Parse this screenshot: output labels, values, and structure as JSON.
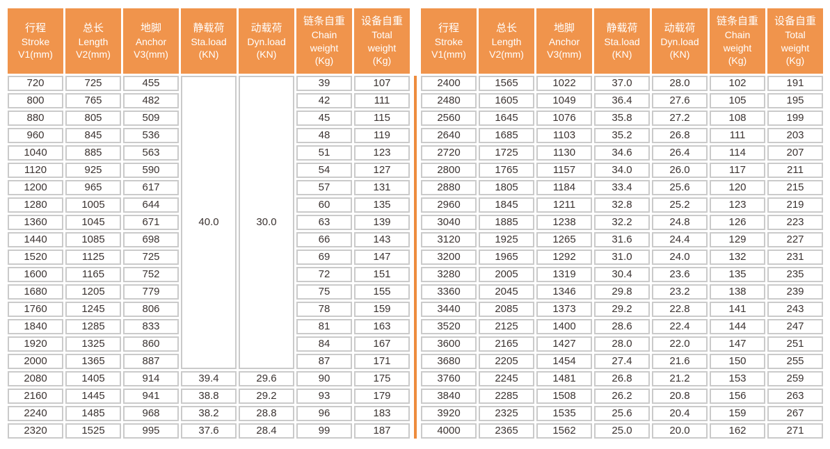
{
  "colors": {
    "header_bg": "#F0944C",
    "header_text": "#FFFFFF",
    "cell_border": "#CACACA",
    "cell_text": "#3B3331",
    "divider": "#EE8C3E",
    "cell_bg": "#FFFFFF"
  },
  "columns": [
    {
      "key": "stroke",
      "lines": [
        "行程",
        "Stroke",
        "V1(mm)"
      ]
    },
    {
      "key": "length",
      "lines": [
        "总长",
        "Length",
        "V2(mm)"
      ]
    },
    {
      "key": "anchor",
      "lines": [
        "地脚",
        "Anchor",
        "V3(mm)"
      ]
    },
    {
      "key": "sta-load",
      "lines": [
        "静载荷",
        "Sta.load",
        "(KN)"
      ]
    },
    {
      "key": "dyn-load",
      "lines": [
        "动载荷",
        "Dyn.load",
        "(KN)"
      ]
    },
    {
      "key": "chain-weight",
      "lines": [
        "链条自重",
        "Chain",
        "weight",
        "(Kg)"
      ]
    },
    {
      "key": "total-weight",
      "lines": [
        "设备自重",
        "Total",
        "weight",
        "(Kg)"
      ]
    }
  ],
  "left_half": {
    "merged_cells": [
      {
        "row": 0,
        "col": 3,
        "rowspan": 17,
        "value": "40.0"
      },
      {
        "row": 0,
        "col": 4,
        "rowspan": 17,
        "value": "30.0"
      }
    ],
    "rows": [
      [
        "720",
        "725",
        "455",
        null,
        null,
        "39",
        "107"
      ],
      [
        "800",
        "765",
        "482",
        null,
        null,
        "42",
        "111"
      ],
      [
        "880",
        "805",
        "509",
        null,
        null,
        "45",
        "115"
      ],
      [
        "960",
        "845",
        "536",
        null,
        null,
        "48",
        "119"
      ],
      [
        "1040",
        "885",
        "563",
        null,
        null,
        "51",
        "123"
      ],
      [
        "1120",
        "925",
        "590",
        null,
        null,
        "54",
        "127"
      ],
      [
        "1200",
        "965",
        "617",
        null,
        null,
        "57",
        "131"
      ],
      [
        "1280",
        "1005",
        "644",
        null,
        null,
        "60",
        "135"
      ],
      [
        "1360",
        "1045",
        "671",
        null,
        null,
        "63",
        "139"
      ],
      [
        "1440",
        "1085",
        "698",
        null,
        null,
        "66",
        "143"
      ],
      [
        "1520",
        "1125",
        "725",
        null,
        null,
        "69",
        "147"
      ],
      [
        "1600",
        "1165",
        "752",
        null,
        null,
        "72",
        "151"
      ],
      [
        "1680",
        "1205",
        "779",
        null,
        null,
        "75",
        "155"
      ],
      [
        "1760",
        "1245",
        "806",
        null,
        null,
        "78",
        "159"
      ],
      [
        "1840",
        "1285",
        "833",
        null,
        null,
        "81",
        "163"
      ],
      [
        "1920",
        "1325",
        "860",
        null,
        null,
        "84",
        "167"
      ],
      [
        "2000",
        "1365",
        "887",
        null,
        null,
        "87",
        "171"
      ],
      [
        "2080",
        "1405",
        "914",
        "39.4",
        "29.6",
        "90",
        "175"
      ],
      [
        "2160",
        "1445",
        "941",
        "38.8",
        "29.2",
        "93",
        "179"
      ],
      [
        "2240",
        "1485",
        "968",
        "38.2",
        "28.8",
        "96",
        "183"
      ],
      [
        "2320",
        "1525",
        "995",
        "37.6",
        "28.4",
        "99",
        "187"
      ]
    ]
  },
  "right_half": {
    "merged_cells": [],
    "rows": [
      [
        "2400",
        "1565",
        "1022",
        "37.0",
        "28.0",
        "102",
        "191"
      ],
      [
        "2480",
        "1605",
        "1049",
        "36.4",
        "27.6",
        "105",
        "195"
      ],
      [
        "2560",
        "1645",
        "1076",
        "35.8",
        "27.2",
        "108",
        "199"
      ],
      [
        "2640",
        "1685",
        "1103",
        "35.2",
        "26.8",
        "111",
        "203"
      ],
      [
        "2720",
        "1725",
        "1130",
        "34.6",
        "26.4",
        "114",
        "207"
      ],
      [
        "2800",
        "1765",
        "1157",
        "34.0",
        "26.0",
        "117",
        "211"
      ],
      [
        "2880",
        "1805",
        "1184",
        "33.4",
        "25.6",
        "120",
        "215"
      ],
      [
        "2960",
        "1845",
        "1211",
        "32.8",
        "25.2",
        "123",
        "219"
      ],
      [
        "3040",
        "1885",
        "1238",
        "32.2",
        "24.8",
        "126",
        "223"
      ],
      [
        "3120",
        "1925",
        "1265",
        "31.6",
        "24.4",
        "129",
        "227"
      ],
      [
        "3200",
        "1965",
        "1292",
        "31.0",
        "24.0",
        "132",
        "231"
      ],
      [
        "3280",
        "2005",
        "1319",
        "30.4",
        "23.6",
        "135",
        "235"
      ],
      [
        "3360",
        "2045",
        "1346",
        "29.8",
        "23.2",
        "138",
        "239"
      ],
      [
        "3440",
        "2085",
        "1373",
        "29.2",
        "22.8",
        "141",
        "243"
      ],
      [
        "3520",
        "2125",
        "1400",
        "28.6",
        "22.4",
        "144",
        "247"
      ],
      [
        "3600",
        "2165",
        "1427",
        "28.0",
        "22.0",
        "147",
        "251"
      ],
      [
        "3680",
        "2205",
        "1454",
        "27.4",
        "21.6",
        "150",
        "255"
      ],
      [
        "3760",
        "2245",
        "1481",
        "26.8",
        "21.2",
        "153",
        "259"
      ],
      [
        "3840",
        "2285",
        "1508",
        "26.2",
        "20.8",
        "156",
        "263"
      ],
      [
        "3920",
        "2325",
        "1535",
        "25.6",
        "20.4",
        "159",
        "267"
      ],
      [
        "4000",
        "2365",
        "1562",
        "25.0",
        "20.0",
        "162",
        "271"
      ]
    ]
  }
}
